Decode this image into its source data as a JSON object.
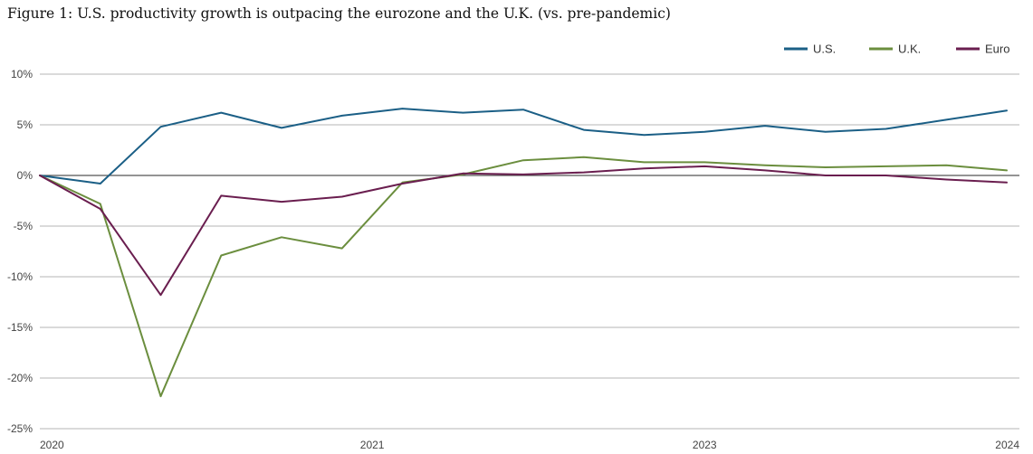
{
  "title": "Figure 1: U.S. productivity growth is outpacing the eurozone and the U.K. (vs. pre-pandemic)",
  "chart_data": {
    "type": "line",
    "title": "Figure 1: U.S. productivity growth is outpacing the eurozone and the U.K. (vs. pre-pandemic)",
    "xlabel": "",
    "ylabel": "",
    "ylim": [
      -25,
      10
    ],
    "yticks": [
      10,
      5,
      0,
      -5,
      -10,
      -15,
      -20,
      -25
    ],
    "ytick_labels": [
      "10%",
      "5%",
      "0%",
      "-5%",
      "-10%",
      "-15%",
      "-20%",
      "-25%"
    ],
    "x": [
      0,
      1,
      2,
      3,
      4,
      5,
      6,
      7,
      8,
      9,
      10,
      11,
      12,
      13,
      14,
      15,
      16
    ],
    "xtick_labels": [
      {
        "x": 0,
        "label": "2020"
      },
      {
        "x": 5.5,
        "label": "2021"
      },
      {
        "x": 11,
        "label": "2023"
      },
      {
        "x": 16,
        "label": "2024"
      }
    ],
    "grid": true,
    "legend_position": "top-right",
    "series": [
      {
        "name": "U.S.",
        "color": "#1b5f86",
        "values": [
          0,
          -0.8,
          4.8,
          6.2,
          4.7,
          5.9,
          6.6,
          6.2,
          6.5,
          4.5,
          4.0,
          4.3,
          4.9,
          4.3,
          4.6,
          5.5,
          6.4
        ]
      },
      {
        "name": "U.K.",
        "color": "#6b8e3e",
        "values": [
          0,
          -2.8,
          -21.8,
          -7.9,
          -6.1,
          -7.2,
          -0.7,
          0.1,
          1.5,
          1.8,
          1.3,
          1.3,
          1.0,
          0.8,
          0.9,
          1.0,
          0.5
        ]
      },
      {
        "name": "Euro",
        "color": "#6a1e4f",
        "values": [
          0,
          -3.3,
          -11.8,
          -2.0,
          -2.6,
          -2.1,
          -0.8,
          0.2,
          0.1,
          0.3,
          0.7,
          0.9,
          0.5,
          0.0,
          0.0,
          -0.4,
          -0.7
        ]
      }
    ]
  }
}
